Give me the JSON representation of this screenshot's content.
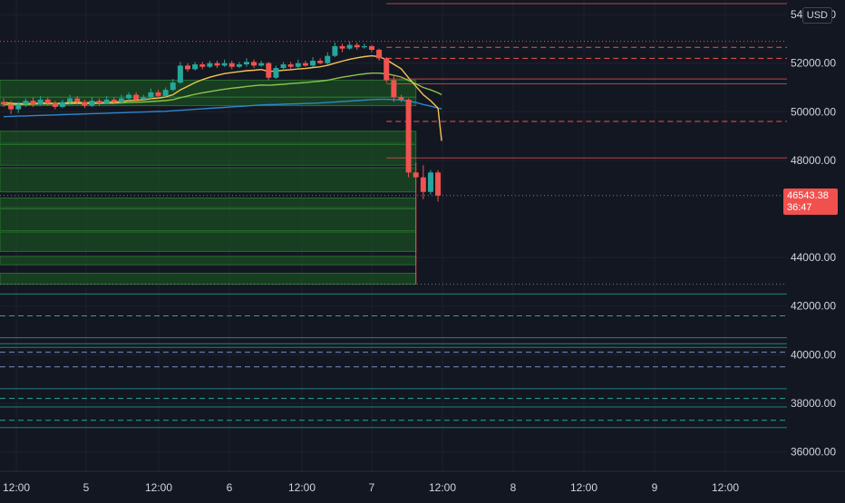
{
  "currency": "USD",
  "last_price": "46543.38",
  "countdown": "36:47",
  "colors": {
    "background": "#131722",
    "up": "#26a69a",
    "down": "#ef5350",
    "ema_fast": "#f5c451",
    "ema_mid": "#8bc34a",
    "ema_slow": "#2f86c9",
    "zone_fill": "#1b5e20",
    "grid": "#1e222d",
    "text": "#d1d4dc"
  },
  "chart_data": {
    "type": "candlestick",
    "y_axis": {
      "ticks": [
        "54000.00",
        "52000.00",
        "50000.00",
        "48000.00",
        "44000.00",
        "42000.00",
        "40000.00",
        "38000.00",
        "36000.00"
      ],
      "range": [
        35200,
        54600
      ]
    },
    "x_axis": {
      "ticks": [
        "12:00",
        "5",
        "12:00",
        "6",
        "12:00",
        "7",
        "12:00",
        "8",
        "12:00",
        "9",
        "12:00"
      ]
    },
    "candles": [
      [
        50400,
        50300,
        50550,
        50200
      ],
      [
        50300,
        50100,
        50450,
        49900
      ],
      [
        50100,
        50300,
        50400,
        49950
      ],
      [
        50300,
        50450,
        50550,
        50200
      ],
      [
        50450,
        50300,
        50600,
        50200
      ],
      [
        50300,
        50500,
        50650,
        50250
      ],
      [
        50500,
        50350,
        50600,
        50250
      ],
      [
        50350,
        50200,
        50450,
        50100
      ],
      [
        50200,
        50400,
        50500,
        50150
      ],
      [
        50400,
        50550,
        50700,
        50300
      ],
      [
        50550,
        50400,
        50650,
        50300
      ],
      [
        50400,
        50250,
        50500,
        50150
      ],
      [
        50250,
        50450,
        50600,
        50200
      ],
      [
        50450,
        50350,
        50550,
        50250
      ],
      [
        50350,
        50500,
        50650,
        50300
      ],
      [
        50500,
        50400,
        50600,
        50300
      ],
      [
        50400,
        50550,
        50700,
        50350
      ],
      [
        50550,
        50700,
        50800,
        50450
      ],
      [
        50700,
        50500,
        50800,
        50400
      ],
      [
        50500,
        50600,
        50700,
        50400
      ],
      [
        50600,
        50800,
        50950,
        50500
      ],
      [
        50800,
        50650,
        50900,
        50550
      ],
      [
        50650,
        50900,
        51000,
        50600
      ],
      [
        50900,
        51200,
        51350,
        50850
      ],
      [
        51200,
        51900,
        52050,
        51150
      ],
      [
        51900,
        51750,
        52000,
        51650
      ],
      [
        51750,
        51950,
        52050,
        51700
      ],
      [
        51950,
        51850,
        52050,
        51750
      ],
      [
        51850,
        52000,
        52100,
        51800
      ],
      [
        52000,
        51900,
        52100,
        51800
      ],
      [
        51900,
        52000,
        52150,
        51850
      ],
      [
        52000,
        51850,
        52100,
        51750
      ],
      [
        51850,
        51950,
        52050,
        51800
      ],
      [
        51950,
        52050,
        52200,
        51850
      ],
      [
        52050,
        51900,
        52150,
        51800
      ],
      [
        51900,
        52000,
        52100,
        51850
      ],
      [
        52000,
        51400,
        52050,
        51300
      ],
      [
        51400,
        51800,
        51900,
        51350
      ],
      [
        51800,
        51950,
        52050,
        51700
      ],
      [
        51950,
        51850,
        52050,
        51750
      ],
      [
        51850,
        52000,
        52150,
        51800
      ],
      [
        52000,
        51900,
        52100,
        51850
      ],
      [
        51900,
        52100,
        52250,
        51850
      ],
      [
        52100,
        52000,
        52200,
        51950
      ],
      [
        52000,
        52300,
        52450,
        51950
      ],
      [
        52300,
        52700,
        52850,
        52250
      ],
      [
        52700,
        52600,
        52800,
        52450
      ],
      [
        52600,
        52750,
        52900,
        52550
      ],
      [
        52750,
        52650,
        52850,
        52550
      ],
      [
        52650,
        52700,
        52800,
        52600
      ],
      [
        52700,
        52550,
        52750,
        52450
      ],
      [
        52550,
        52200,
        52600,
        52100
      ],
      [
        52200,
        51300,
        52250,
        51200
      ],
      [
        51300,
        50600,
        51500,
        50400
      ],
      [
        50600,
        50500,
        50700,
        50400
      ],
      [
        50500,
        47500,
        50550,
        47300
      ],
      [
        47500,
        47300,
        47900,
        42900
      ],
      [
        47300,
        46700,
        47800,
        46400
      ],
      [
        46700,
        47500,
        47600,
        46600
      ],
      [
        47500,
        46550,
        47600,
        46300
      ]
    ],
    "ema_fast": [
      50380,
      50350,
      50330,
      50340,
      50340,
      50360,
      50360,
      50340,
      50350,
      50380,
      50390,
      50370,
      50380,
      50370,
      50390,
      50390,
      50420,
      50460,
      50470,
      50490,
      50540,
      50560,
      50610,
      50700,
      50900,
      51050,
      51200,
      51320,
      51420,
      51500,
      51570,
      51610,
      51650,
      51690,
      51710,
      51740,
      51660,
      51680,
      51710,
      51730,
      51760,
      51780,
      51820,
      51850,
      51910,
      52000,
      52080,
      52160,
      52220,
      52270,
      52300,
      52270,
      52140,
      51950,
      51770,
      51400,
      51050,
      50700,
      50450,
      50150
    ],
    "ema_mid": [
      50300,
      50300,
      50300,
      50300,
      50310,
      50320,
      50320,
      50320,
      50320,
      50330,
      50340,
      50330,
      50340,
      50340,
      50350,
      50350,
      50360,
      50380,
      50390,
      50400,
      50420,
      50440,
      50460,
      50500,
      50580,
      50650,
      50720,
      50780,
      50830,
      50880,
      50930,
      50970,
      51000,
      51040,
      51070,
      51100,
      51090,
      51110,
      51130,
      51160,
      51180,
      51200,
      51230,
      51260,
      51300,
      51360,
      51420,
      51470,
      51520,
      51560,
      51590,
      51590,
      51560,
      51500,
      51430,
      51290,
      51150,
      51000,
      50900,
      50780
    ],
    "ema_slow": [
      49800,
      49810,
      49820,
      49830,
      49840,
      49850,
      49860,
      49870,
      49880,
      49890,
      49900,
      49910,
      49920,
      49930,
      49940,
      49950,
      49960,
      49970,
      49980,
      49990,
      50000,
      50010,
      50020,
      50040,
      50060,
      50080,
      50100,
      50120,
      50140,
      50160,
      50180,
      50200,
      50220,
      50240,
      50260,
      50280,
      50290,
      50300,
      50310,
      50320,
      50330,
      50340,
      50350,
      50360,
      50380,
      50400,
      50420,
      50440,
      50460,
      50480,
      50500,
      50510,
      50510,
      50500,
      50480,
      50440,
      50380,
      50300,
      50230,
      50150
    ],
    "support_zones": [
      [
        50600,
        51300
      ],
      [
        50250,
        50600
      ],
      [
        48700,
        49200
      ],
      [
        47800,
        48650
      ],
      [
        46700,
        47700
      ],
      [
        46050,
        46450
      ],
      [
        45100,
        46000
      ],
      [
        44250,
        45050
      ],
      [
        43700,
        44050
      ],
      [
        42900,
        43350
      ]
    ],
    "solid_lines": [
      {
        "price": 54450,
        "color": "#ef5350"
      },
      {
        "price": 51350,
        "color": "#ef5350"
      },
      {
        "price": 51150,
        "color": "#ef5350"
      },
      {
        "price": 48100,
        "color": "#ef5350"
      },
      {
        "price": 42500,
        "color": "#26a69a"
      },
      {
        "price": 40700,
        "color": "#26a69a"
      },
      {
        "price": 40450,
        "color": "#26a69a"
      },
      {
        "price": 40300,
        "color": "#26a69a"
      },
      {
        "price": 38600,
        "color": "#26a69a"
      },
      {
        "price": 37850,
        "color": "#26a69a"
      },
      {
        "price": 37000,
        "color": "#26a69a"
      }
    ],
    "dashed_lines": [
      {
        "price": 52650,
        "color": "#ef5350"
      },
      {
        "price": 52200,
        "color": "#ef5350"
      },
      {
        "price": 49600,
        "color": "#ef5350"
      },
      {
        "price": 41600,
        "color": "#26a69a"
      },
      {
        "price": 40100,
        "color": "#7e8ac0"
      },
      {
        "price": 39500,
        "color": "#7e8ac0"
      },
      {
        "price": 38200,
        "color": "#26a69a"
      },
      {
        "price": 37300,
        "color": "#26a69a"
      }
    ],
    "dotted_lines": [
      {
        "price": 52900,
        "color": "#ef5350"
      },
      {
        "price": 46550,
        "color": "#787b86"
      },
      {
        "price": 42900,
        "color": "#787b86"
      }
    ]
  }
}
